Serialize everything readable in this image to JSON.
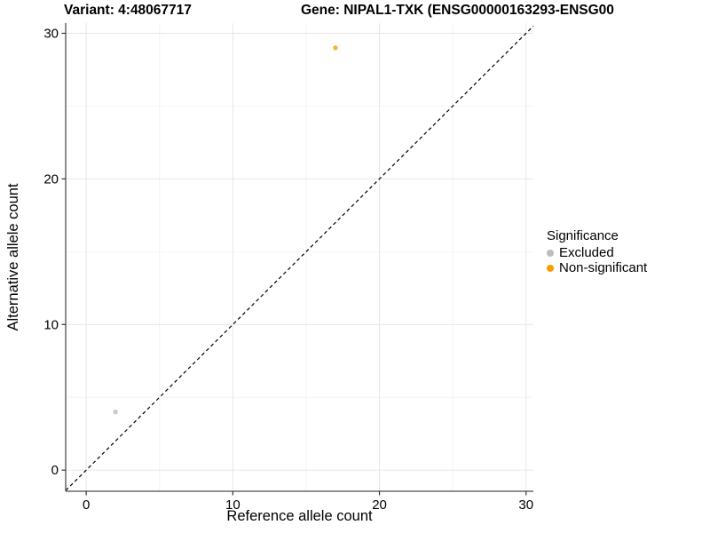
{
  "titles": {
    "variant": "Variant: 4:48067717",
    "gene": "Gene: NIPAL1-TXK (ENSG00000163293-ENSG00"
  },
  "chart_data": {
    "type": "scatter",
    "xlabel": "Reference allele count",
    "ylabel": "Alternative allele count",
    "xlim": [
      -1.4,
      30.5
    ],
    "ylim": [
      -1.45,
      30.7
    ],
    "x_ticks": [
      0,
      10,
      20,
      30
    ],
    "y_ticks": [
      0,
      10,
      20,
      30
    ],
    "x_minor_ticks": [
      5,
      15,
      25
    ],
    "y_minor_ticks": [
      5,
      15,
      25
    ],
    "grid": true,
    "identity_line": {
      "equation": "y = x",
      "style": "dashed",
      "color": "#000000"
    },
    "series": [
      {
        "name": "Excluded",
        "color": "#BDBDBD",
        "points": [
          {
            "x": 2,
            "y": 4
          }
        ]
      },
      {
        "name": "Non-significant",
        "color": "#FF9B00",
        "points": [
          {
            "x": 17,
            "y": 29
          }
        ]
      }
    ],
    "legend": {
      "title": "Significance",
      "position": "right",
      "entries": [
        {
          "label": "Excluded",
          "color": "#BDBDBD"
        },
        {
          "label": "Non-significant",
          "color": "#FF9B00"
        }
      ]
    }
  }
}
